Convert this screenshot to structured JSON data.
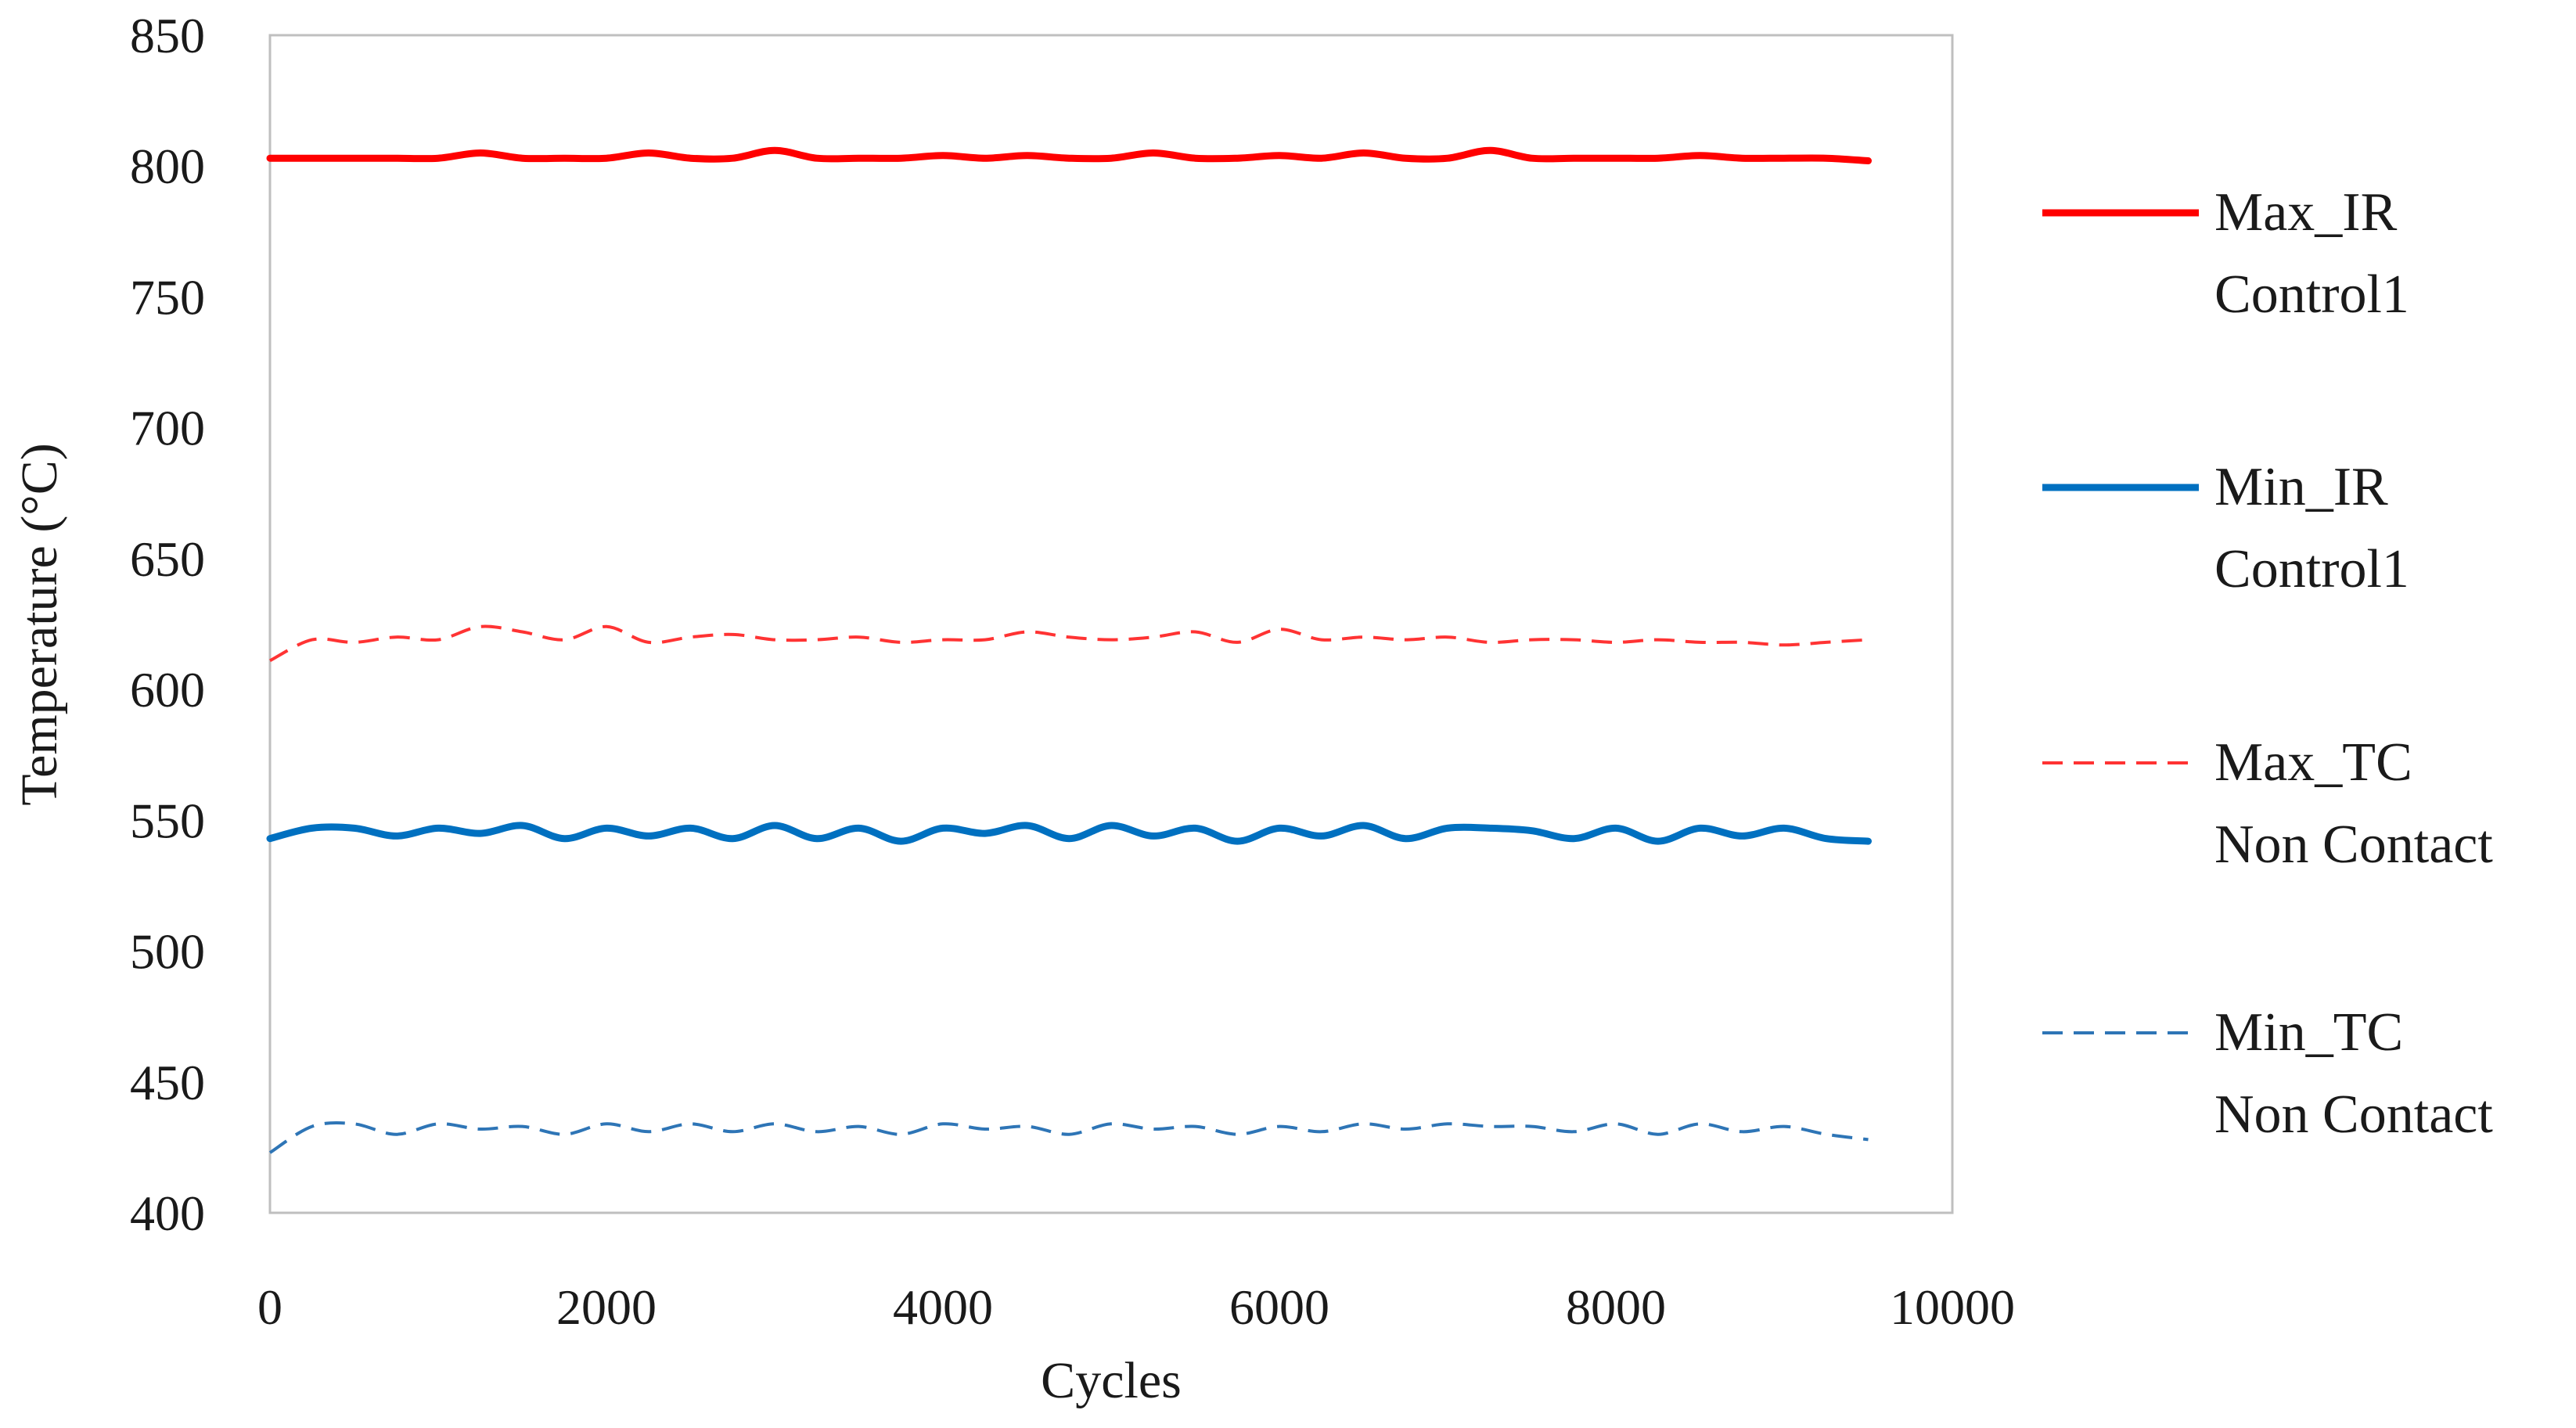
{
  "chart_data": {
    "type": "line",
    "title": "",
    "xlabel": "Cycles",
    "ylabel": "Temperature (°C)",
    "xlim": [
      0,
      10000
    ],
    "ylim": [
      400,
      850
    ],
    "xticks": [
      0,
      2000,
      4000,
      6000,
      8000,
      10000
    ],
    "yticks": [
      400,
      450,
      500,
      550,
      600,
      650,
      700,
      750,
      800,
      850
    ],
    "grid": false,
    "legend_position": "right",
    "x": [
      0,
      250,
      500,
      750,
      1000,
      1250,
      1500,
      1750,
      2000,
      2250,
      2500,
      2750,
      3000,
      3250,
      3500,
      3750,
      4000,
      4250,
      4500,
      4750,
      5000,
      5250,
      5500,
      5750,
      6000,
      6250,
      6500,
      6750,
      7000,
      7250,
      7500,
      7750,
      8000,
      8250,
      8500,
      8750,
      9000,
      9250,
      9500
    ],
    "series": [
      {
        "name": "Max_IR Control1",
        "legend_lines": [
          "Max_IR",
          "Control1"
        ],
        "color": "#ff0000",
        "style": "solid",
        "values": [
          803,
          803,
          803,
          803,
          803,
          805,
          803,
          803,
          803,
          805,
          803,
          803,
          806,
          803,
          803,
          803,
          804,
          803,
          804,
          803,
          803,
          805,
          803,
          803,
          804,
          803,
          805,
          803,
          803,
          806,
          803,
          803,
          803,
          803,
          804,
          803,
          803,
          803,
          802
        ]
      },
      {
        "name": "Min_IR Control1",
        "legend_lines": [
          "Min_IR",
          "Control1"
        ],
        "color": "#0070c0",
        "style": "solid",
        "values": [
          543,
          547,
          547,
          544,
          547,
          545,
          548,
          543,
          547,
          544,
          547,
          543,
          548,
          543,
          547,
          542,
          547,
          545,
          548,
          543,
          548,
          544,
          547,
          542,
          547,
          544,
          548,
          543,
          547,
          547,
          546,
          543,
          547,
          542,
          547,
          544,
          547,
          543,
          542
        ]
      },
      {
        "name": "Max_TC Non Contact",
        "legend_lines": [
          "Max_TC",
          "Non Contact"
        ],
        "color": "#ff3333",
        "style": "dashed",
        "values": [
          611,
          619,
          618,
          620,
          619,
          624,
          622,
          619,
          624,
          618,
          620,
          621,
          619,
          619,
          620,
          618,
          619,
          619,
          622,
          620,
          619,
          620,
          622,
          618,
          623,
          619,
          620,
          619,
          620,
          618,
          619,
          619,
          618,
          619,
          618,
          618,
          617,
          618,
          619
        ]
      },
      {
        "name": "Min_TC Non Contact",
        "legend_lines": [
          "Min_TC",
          "Non Contact"
        ],
        "color": "#2e75b6",
        "style": "dashed",
        "values": [
          423,
          433,
          434,
          430,
          434,
          432,
          433,
          430,
          434,
          431,
          434,
          431,
          434,
          431,
          433,
          430,
          434,
          432,
          433,
          430,
          434,
          432,
          433,
          430,
          433,
          431,
          434,
          432,
          434,
          433,
          433,
          431,
          434,
          430,
          434,
          431,
          433,
          430,
          428
        ]
      }
    ]
  }
}
